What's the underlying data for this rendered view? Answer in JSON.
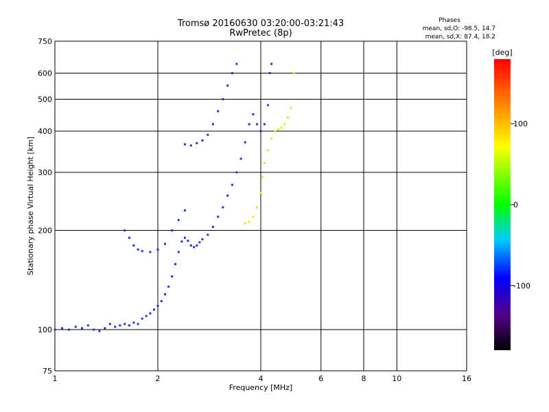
{
  "chart_data": {
    "type": "scatter",
    "title": "Tromsø 20160630 03:20:00-03:21:43",
    "subtitle": "RwPretec (8p)",
    "xlabel": "Frequency [MHz]",
    "ylabel": "Stationary phase Virtual Height [km]",
    "x_scale": "log",
    "y_scale": "log",
    "xlim": [
      1,
      16
    ],
    "ylim": [
      75,
      750
    ],
    "x_ticks": [
      1,
      2,
      4,
      6,
      8,
      10,
      16
    ],
    "y_ticks": [
      75,
      100,
      200,
      300,
      400,
      500,
      600,
      750
    ],
    "grid": true,
    "stats": {
      "header": "Phases",
      "line_o": "mean, sd,O: -98.5, 14.7",
      "line_x": "mean, sd,X:  87.4, 18.2"
    },
    "colorbar": {
      "label": "[deg]",
      "range": [
        -180,
        180
      ],
      "ticks": [
        100,
        0,
        -100
      ]
    },
    "series": [
      {
        "trace": "o-mode",
        "phase": -110,
        "points": [
          [
            1.0,
            100
          ],
          [
            1.05,
            101
          ],
          [
            1.1,
            100
          ],
          [
            1.15,
            102
          ],
          [
            1.2,
            101
          ],
          [
            1.25,
            103
          ],
          [
            1.3,
            100
          ],
          [
            1.35,
            99
          ],
          [
            1.4,
            101
          ],
          [
            1.45,
            104
          ],
          [
            1.5,
            102
          ],
          [
            1.55,
            103
          ],
          [
            1.6,
            104
          ],
          [
            1.65,
            103
          ],
          [
            1.7,
            105
          ],
          [
            1.75,
            104
          ],
          [
            1.8,
            108
          ],
          [
            1.85,
            110
          ],
          [
            1.9,
            112
          ],
          [
            1.95,
            115
          ],
          [
            2.0,
            118
          ],
          [
            2.05,
            122
          ],
          [
            2.1,
            128
          ],
          [
            2.15,
            135
          ],
          [
            2.2,
            145
          ],
          [
            2.25,
            158
          ],
          [
            2.3,
            172
          ],
          [
            2.35,
            185
          ],
          [
            2.4,
            190
          ],
          [
            2.45,
            186
          ],
          [
            2.5,
            180
          ],
          [
            2.55,
            178
          ],
          [
            2.6,
            180
          ],
          [
            2.65,
            184
          ],
          [
            2.7,
            188
          ],
          [
            2.8,
            194
          ],
          [
            2.9,
            205
          ],
          [
            3.0,
            220
          ],
          [
            3.1,
            235
          ],
          [
            3.2,
            255
          ],
          [
            3.3,
            275
          ],
          [
            3.4,
            300
          ],
          [
            3.5,
            330
          ],
          [
            3.6,
            370
          ],
          [
            3.7,
            420
          ],
          [
            3.8,
            450
          ],
          [
            3.9,
            420
          ],
          [
            4.0,
            400
          ],
          [
            4.1,
            420
          ],
          [
            4.2,
            480
          ],
          [
            4.25,
            600
          ],
          [
            4.3,
            640
          ]
        ]
      },
      {
        "trace": "o-mode-upper",
        "phase": -110,
        "points": [
          [
            2.4,
            365
          ],
          [
            2.5,
            362
          ],
          [
            2.6,
            368
          ],
          [
            2.7,
            375
          ],
          [
            2.8,
            390
          ],
          [
            2.9,
            420
          ],
          [
            3.0,
            460
          ],
          [
            3.1,
            500
          ],
          [
            3.2,
            550
          ],
          [
            3.3,
            600
          ],
          [
            3.4,
            640
          ]
        ]
      },
      {
        "trace": "o-mode-cusp",
        "phase": -110,
        "points": [
          [
            1.6,
            200
          ],
          [
            1.65,
            190
          ],
          [
            1.7,
            180
          ],
          [
            1.75,
            175
          ],
          [
            1.8,
            173
          ],
          [
            1.9,
            172
          ],
          [
            2.0,
            175
          ],
          [
            2.1,
            182
          ],
          [
            2.2,
            200
          ],
          [
            2.3,
            215
          ],
          [
            2.4,
            230
          ]
        ]
      },
      {
        "trace": "x-mode",
        "phase": 110,
        "points": [
          [
            3.6,
            210
          ],
          [
            3.7,
            212
          ],
          [
            3.8,
            220
          ],
          [
            3.9,
            235
          ],
          [
            4.0,
            260
          ],
          [
            4.05,
            290
          ],
          [
            4.1,
            320
          ],
          [
            4.2,
            350
          ],
          [
            4.3,
            380
          ],
          [
            4.4,
            400
          ],
          [
            4.5,
            405
          ],
          [
            4.6,
            410
          ],
          [
            4.7,
            420
          ],
          [
            4.8,
            440
          ],
          [
            4.9,
            470
          ],
          [
            5.0,
            600
          ]
        ]
      }
    ]
  }
}
